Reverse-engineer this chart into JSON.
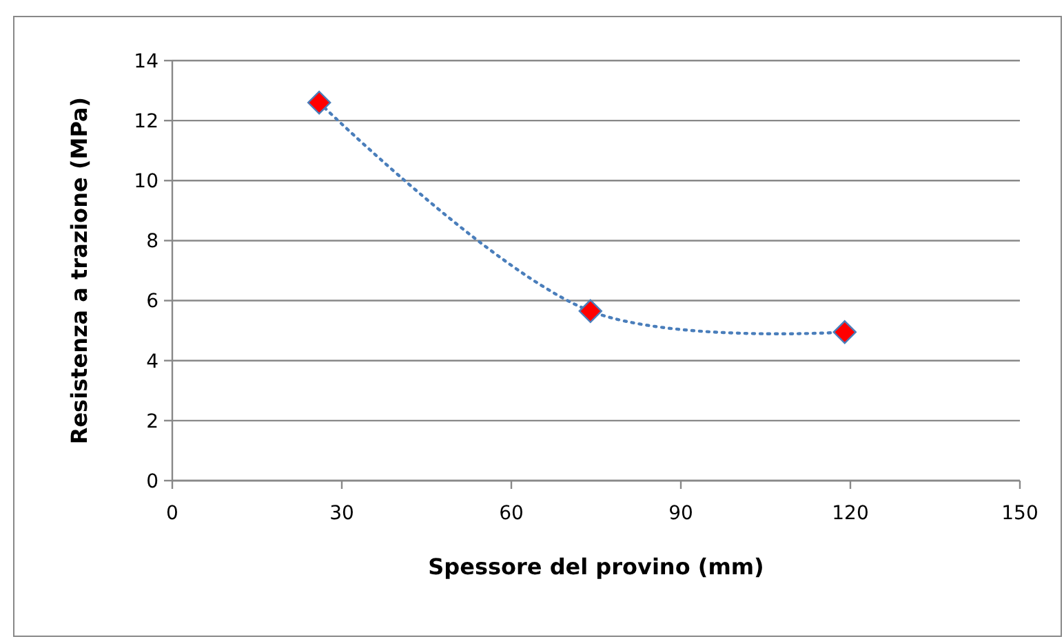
{
  "chart_data": {
    "type": "line",
    "xlabel": "Spessore del provino (mm)",
    "ylabel": "Resistenza a trazione (MPa)",
    "x": [
      26,
      74,
      119
    ],
    "series": [
      {
        "color": "#4a7ebb",
        "colors": [
          "#ff0000",
          "#ff0000",
          "#ff0000"
        ],
        "values": [
          12.6,
          5.65,
          4.95
        ]
      }
    ],
    "xlim": [
      0,
      150
    ],
    "xticks": [
      0,
      30,
      60,
      90,
      120,
      150
    ],
    "ylim": [
      0,
      14
    ],
    "yticks": [
      0,
      2,
      4,
      6,
      8,
      10,
      12,
      14
    ],
    "grid": "y",
    "marker": "diamond",
    "line_style": "dotted"
  }
}
